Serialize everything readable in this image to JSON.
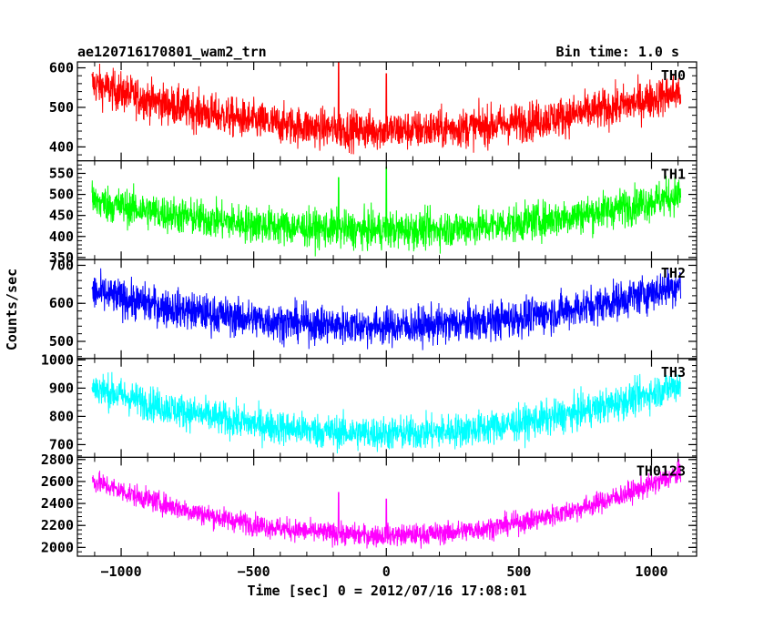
{
  "title_left": "ae120716170801_wam2_trn",
  "title_right": "Bin time: 1.0 s",
  "ylabel": "Counts/sec",
  "xlabel": "Time [sec] 0 = 2012/07/16 17:08:01",
  "x_ticks": [
    "−1000",
    "−500",
    "0",
    "500",
    "1000"
  ],
  "chart_data": {
    "type": "line",
    "x_range": [
      -1110,
      1110
    ],
    "xlim": [
      -1165,
      1170
    ],
    "xlabel": "Time [sec] 0 = 2012/07/16 17:08:01",
    "ylabel": "Counts/sec",
    "x_ticks": [
      -1000,
      -500,
      0,
      500,
      1000
    ],
    "panels": [
      {
        "name": "TH0",
        "color": "#ff0000",
        "ylim": [
          365,
          615
        ],
        "ticks": [
          400,
          500,
          600
        ],
        "tick_labels": [
          "400",
          "500",
          "600"
        ],
        "base_center": 442,
        "edge_left": 560,
        "edge_right": 540,
        "noise": 45,
        "spikes": [
          {
            "t": -180,
            "v": 615
          },
          {
            "t": 0,
            "v": 585
          }
        ]
      },
      {
        "name": "TH1",
        "color": "#00ff00",
        "ylim": [
          345,
          580
        ],
        "ticks": [
          350,
          400,
          450,
          500,
          550
        ],
        "tick_labels": [
          "350",
          "400",
          "450",
          "500",
          "550"
        ],
        "base_center": 415,
        "edge_left": 485,
        "edge_right": 500,
        "noise": 40,
        "spikes": [
          {
            "t": -180,
            "v": 540
          },
          {
            "t": 0,
            "v": 565
          }
        ]
      },
      {
        "name": "TH2",
        "color": "#0000ff",
        "ylim": [
          455,
          715
        ],
        "ticks": [
          500,
          600,
          700
        ],
        "tick_labels": [
          "500",
          "600",
          "700"
        ],
        "base_center": 540,
        "edge_left": 630,
        "edge_right": 650,
        "noise": 45,
        "spikes": []
      },
      {
        "name": "TH3",
        "color": "#00ffff",
        "ylim": [
          655,
          1005
        ],
        "ticks": [
          700,
          800,
          900,
          1000
        ],
        "tick_labels": [
          "700",
          "800",
          "900",
          "1000"
        ],
        "base_center": 740,
        "edge_left": 905,
        "edge_right": 915,
        "noise": 55,
        "spikes": []
      },
      {
        "name": "TH0123",
        "color": "#ff00ff",
        "ylim": [
          1920,
          2820
        ],
        "ticks": [
          2000,
          2200,
          2400,
          2600,
          2800
        ],
        "tick_labels": [
          "2000",
          "2200",
          "2400",
          "2600",
          "2800"
        ],
        "base_center": 2110,
        "edge_left": 2610,
        "edge_right": 2680,
        "noise": 90,
        "spikes": [
          {
            "t": -180,
            "v": 2500
          },
          {
            "t": 0,
            "v": 2440
          }
        ]
      }
    ]
  }
}
